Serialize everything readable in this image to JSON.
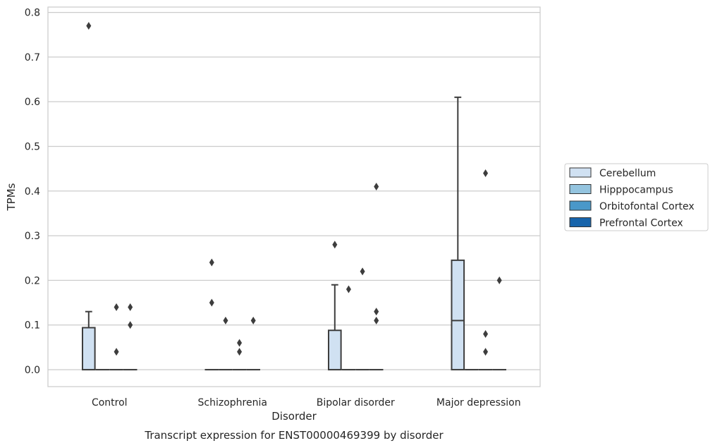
{
  "chart_data": {
    "type": "box",
    "caption": "Transcript expression for ENST00000469399 by disorder",
    "xlabel": "Disorder",
    "ylabel": "TPMs",
    "ylim": [
      -0.038,
      0.812
    ],
    "yticks": [
      "0.0",
      "0.1",
      "0.2",
      "0.3",
      "0.4",
      "0.5",
      "0.6",
      "0.7",
      "0.8"
    ],
    "grid": "horizontal",
    "legend_position": "right",
    "categories": [
      "Control",
      "Schizophrenia",
      "Bipolar disorder",
      "Major depression"
    ],
    "series": [
      {
        "name": "Cerebellum",
        "color": "#d0e1f2",
        "boxes": [
          {
            "q1": 0.0,
            "median": 0.0,
            "q3": 0.094,
            "whisker_low": 0.0,
            "whisker_high": 0.13,
            "outliers": [
              0.77
            ]
          },
          {
            "q1": 0.0,
            "median": 0.0,
            "q3": 0.0,
            "whisker_low": 0.0,
            "whisker_high": 0.0,
            "outliers": [
              0.24,
              0.15
            ]
          },
          {
            "q1": 0.0,
            "median": 0.0,
            "q3": 0.088,
            "whisker_low": 0.0,
            "whisker_high": 0.19,
            "outliers": [
              0.28
            ]
          },
          {
            "q1": 0.0,
            "median": 0.11,
            "q3": 0.245,
            "whisker_low": 0.0,
            "whisker_high": 0.61,
            "outliers": []
          }
        ]
      },
      {
        "name": "Hipppocampus",
        "color": "#94c4df",
        "boxes": [
          {
            "q1": 0.0,
            "median": 0.0,
            "q3": 0.0,
            "whisker_low": 0.0,
            "whisker_high": 0.0,
            "outliers": []
          },
          {
            "q1": 0.0,
            "median": 0.0,
            "q3": 0.0,
            "whisker_low": 0.0,
            "whisker_high": 0.0,
            "outliers": [
              0.11
            ]
          },
          {
            "q1": 0.0,
            "median": 0.0,
            "q3": 0.0,
            "whisker_low": 0.0,
            "whisker_high": 0.0,
            "outliers": [
              0.18
            ]
          },
          {
            "q1": 0.0,
            "median": 0.0,
            "q3": 0.0,
            "whisker_low": 0.0,
            "whisker_high": 0.0,
            "outliers": []
          }
        ]
      },
      {
        "name": "Orbitofontal Cortex",
        "color": "#4a98c9",
        "boxes": [
          {
            "q1": 0.0,
            "median": 0.0,
            "q3": 0.0,
            "whisker_low": 0.0,
            "whisker_high": 0.0,
            "outliers": [
              0.14,
              0.04
            ]
          },
          {
            "q1": 0.0,
            "median": 0.0,
            "q3": 0.0,
            "whisker_low": 0.0,
            "whisker_high": 0.0,
            "outliers": [
              0.06,
              0.04
            ]
          },
          {
            "q1": 0.0,
            "median": 0.0,
            "q3": 0.0,
            "whisker_low": 0.0,
            "whisker_high": 0.0,
            "outliers": [
              0.22
            ]
          },
          {
            "q1": 0.0,
            "median": 0.0,
            "q3": 0.0,
            "whisker_low": 0.0,
            "whisker_high": 0.0,
            "outliers": [
              0.44,
              0.08,
              0.04
            ]
          }
        ]
      },
      {
        "name": "Prefrontal Cortex",
        "color": "#1764ab",
        "boxes": [
          {
            "q1": 0.0,
            "median": 0.0,
            "q3": 0.0,
            "whisker_low": 0.0,
            "whisker_high": 0.0,
            "outliers": [
              0.14,
              0.1
            ]
          },
          {
            "q1": 0.0,
            "median": 0.0,
            "q3": 0.0,
            "whisker_low": 0.0,
            "whisker_high": 0.0,
            "outliers": [
              0.11
            ]
          },
          {
            "q1": 0.0,
            "median": 0.0,
            "q3": 0.0,
            "whisker_low": 0.0,
            "whisker_high": 0.0,
            "outliers": [
              0.41,
              0.13,
              0.11
            ]
          },
          {
            "q1": 0.0,
            "median": 0.0,
            "q3": 0.0,
            "whisker_low": 0.0,
            "whisker_high": 0.0,
            "outliers": [
              0.2
            ]
          }
        ]
      }
    ]
  }
}
